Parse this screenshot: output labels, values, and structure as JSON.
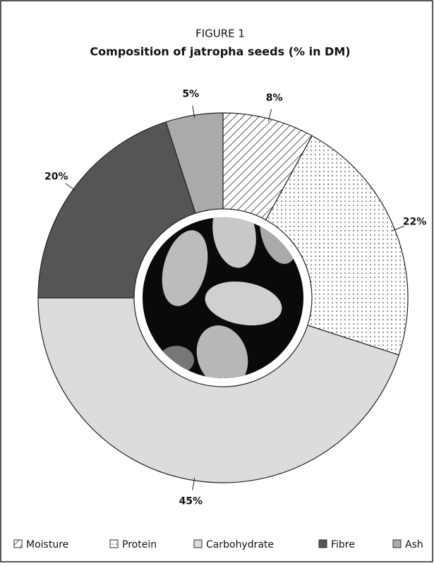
{
  "chart_data": {
    "type": "donut",
    "label": "FIGURE 1",
    "title": "Composition of jatropha seeds (% in DM)",
    "categories": [
      "Moisture",
      "Protein",
      "Carbohydrate",
      "Fibre",
      "Ash"
    ],
    "values": [
      8,
      22,
      45,
      20,
      5
    ],
    "value_labels": [
      "8%",
      "22%",
      "45%",
      "20%",
      "5%"
    ],
    "colors": [
      "#ffffff",
      "#ffffff",
      "#dcdcdc",
      "#555555",
      "#aaaaaa"
    ],
    "patterns": [
      "hatch",
      "dots",
      "solid",
      "solid",
      "solid"
    ]
  }
}
